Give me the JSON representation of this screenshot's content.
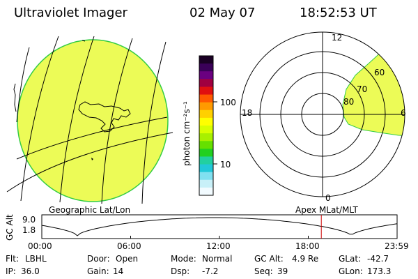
{
  "header": {
    "title": "Ultraviolet Imager",
    "date": "02 May 07",
    "time": "18:52:53 UT"
  },
  "colorbar": {
    "label": "photon cm⁻²s⁻¹",
    "ticks": [
      "100",
      "10"
    ],
    "colors": [
      "#1a0024",
      "#3a0058",
      "#6a0080",
      "#a00040",
      "#e01010",
      "#ff5a00",
      "#ff9a00",
      "#ffd000",
      "#ffff00",
      "#d8ff00",
      "#a8f000",
      "#66e000",
      "#22d020",
      "#22d0a0",
      "#22c8d8",
      "#80e0f0",
      "#c8f0f8",
      "#f2fbff"
    ]
  },
  "geo_panel": {
    "fill_color": "#ecfb57",
    "edge_color": "#33cc44"
  },
  "polar_panel": {
    "mlt_labels": [
      "12",
      "18",
      "6",
      "0"
    ],
    "lat_labels": [
      "60",
      "70",
      "80"
    ],
    "fill_color": "#ecfb57"
  },
  "altitude_panel": {
    "left_title": "Geographic Lat/Lon",
    "right_title": "Apex MLat/MLT",
    "ylabel": "GC Alt",
    "yticks": [
      "9.0",
      "1.8"
    ],
    "xticks": [
      "00:00",
      "06:00",
      "12:00",
      "18:00",
      "23:59"
    ],
    "current_time_hours": 18.88
  },
  "info": {
    "row1": [
      {
        "label": "Flt:",
        "value": "LBHL"
      },
      {
        "label": "Door:",
        "value": "Open"
      },
      {
        "label": "Mode:",
        "value": "Normal"
      },
      {
        "label": "GC Alt:",
        "value": "4.9 Re"
      },
      {
        "label": "GLat:",
        "value": "-42.7"
      }
    ],
    "row2": [
      {
        "label": "IP:",
        "value": "36.0"
      },
      {
        "label": "Gain:",
        "value": "14"
      },
      {
        "label": "Dsp:",
        "value": "-7.2"
      },
      {
        "label": "Seq:",
        "value": "39"
      },
      {
        "label": "GLon:",
        "value": "173.3"
      }
    ]
  }
}
